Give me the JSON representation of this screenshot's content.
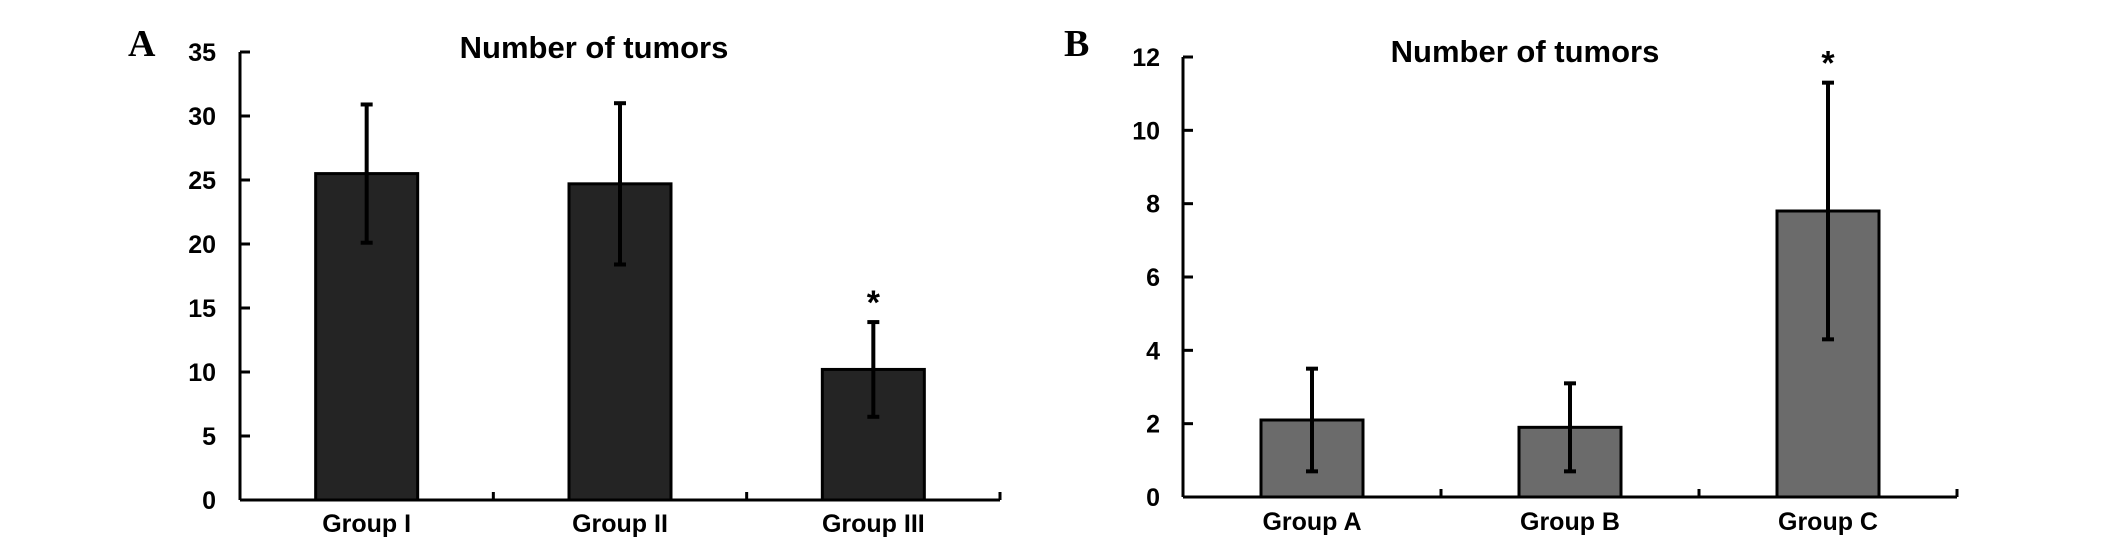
{
  "chart_data": [
    {
      "panel": "A",
      "type": "bar",
      "title": "Number of tumors",
      "categories": [
        "Group I",
        "Group II",
        "Group III"
      ],
      "values": [
        25.5,
        24.7,
        10.2
      ],
      "errors": [
        5.4,
        6.3,
        3.7
      ],
      "annotations": [
        "",
        "",
        "*"
      ],
      "ylim": [
        0,
        35
      ],
      "yticks": [
        0,
        5,
        10,
        15,
        20,
        25,
        30,
        35
      ],
      "bar_color": "#242424",
      "grid": false
    },
    {
      "panel": "B",
      "type": "bar",
      "title": "Number of tumors",
      "categories": [
        "Group A",
        "Group B",
        "Group C"
      ],
      "values": [
        2.1,
        1.9,
        7.8
      ],
      "errors": [
        1.4,
        1.2,
        3.5
      ],
      "annotations": [
        "",
        "",
        "*"
      ],
      "ylim": [
        0,
        12
      ],
      "yticks": [
        0,
        2,
        4,
        6,
        8,
        10,
        12
      ],
      "bar_color": "#6b6b6b",
      "grid": false
    }
  ]
}
